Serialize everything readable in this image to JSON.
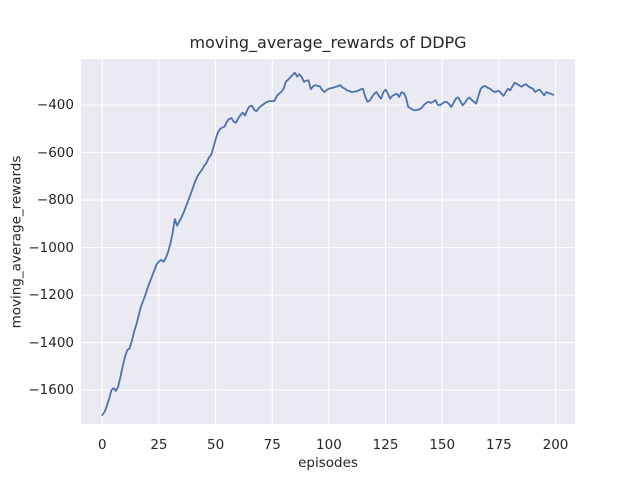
{
  "figure": {
    "title": "moving_average_rewards of DDPG",
    "xlabel": "episodes",
    "ylabel": "moving_average_rewards"
  },
  "chart_data": {
    "type": "line",
    "title": "moving_average_rewards of DDPG",
    "xlabel": "episodes",
    "ylabel": "moving_average_rewards",
    "legend": "none",
    "grid": true,
    "xlim": [
      -9.4,
      208.6
    ],
    "ylim": [
      -1743,
      -206
    ],
    "xticks": {
      "values": [
        0,
        25,
        50,
        75,
        100,
        125,
        150,
        175,
        200
      ],
      "labels": [
        "0",
        "25",
        "50",
        "75",
        "100",
        "125",
        "150",
        "175",
        "200"
      ]
    },
    "yticks": {
      "values": [
        -400,
        -600,
        -800,
        -1000,
        -1200,
        -1400,
        -1600
      ],
      "labels": [
        "−400",
        "−600",
        "−800",
        "−1000",
        "−1200",
        "−1400",
        "−1600"
      ]
    },
    "style": {
      "fig_bg": "#ffffff",
      "plot_bg": "#eaeaf2",
      "grid_color": "#ffffff",
      "text_color": "#262626",
      "line_color": "#4c72b0",
      "line_width": 1.8
    },
    "series": [
      {
        "name": "moving_average_rewards",
        "color": "#4c72b0",
        "points": [
          [
            0,
            -1705
          ],
          [
            1,
            -1692
          ],
          [
            2,
            -1667
          ],
          [
            3,
            -1638
          ],
          [
            4,
            -1601
          ],
          [
            5,
            -1592
          ],
          [
            6,
            -1604
          ],
          [
            7,
            -1585
          ],
          [
            8,
            -1545
          ],
          [
            9,
            -1500
          ],
          [
            10,
            -1460
          ],
          [
            11,
            -1432
          ],
          [
            12,
            -1425
          ],
          [
            13,
            -1395
          ],
          [
            14,
            -1355
          ],
          [
            15,
            -1325
          ],
          [
            16,
            -1288
          ],
          [
            17,
            -1250
          ],
          [
            18,
            -1225
          ],
          [
            19,
            -1200
          ],
          [
            20,
            -1170
          ],
          [
            21,
            -1145
          ],
          [
            22,
            -1120
          ],
          [
            23,
            -1095
          ],
          [
            24,
            -1070
          ],
          [
            25,
            -1058
          ],
          [
            26,
            -1052
          ],
          [
            27,
            -1060
          ],
          [
            28,
            -1045
          ],
          [
            29,
            -1020
          ],
          [
            30,
            -985
          ],
          [
            31,
            -940
          ],
          [
            32,
            -880
          ],
          [
            33,
            -908
          ],
          [
            34,
            -890
          ],
          [
            35,
            -872
          ],
          [
            36,
            -850
          ],
          [
            37,
            -825
          ],
          [
            38,
            -800
          ],
          [
            39,
            -775
          ],
          [
            40,
            -748
          ],
          [
            41,
            -722
          ],
          [
            42,
            -700
          ],
          [
            43,
            -685
          ],
          [
            44,
            -672
          ],
          [
            45,
            -655
          ],
          [
            46,
            -643
          ],
          [
            47,
            -622
          ],
          [
            48,
            -610
          ],
          [
            49,
            -580
          ],
          [
            50,
            -545
          ],
          [
            51,
            -515
          ],
          [
            52,
            -500
          ],
          [
            53,
            -495
          ],
          [
            54,
            -490
          ],
          [
            55,
            -470
          ],
          [
            56,
            -458
          ],
          [
            57,
            -455
          ],
          [
            58,
            -470
          ],
          [
            59,
            -474
          ],
          [
            60,
            -455
          ],
          [
            61,
            -442
          ],
          [
            62,
            -432
          ],
          [
            63,
            -444
          ],
          [
            64,
            -420
          ],
          [
            65,
            -405
          ],
          [
            66,
            -403
          ],
          [
            67,
            -420
          ],
          [
            68,
            -426
          ],
          [
            69,
            -413
          ],
          [
            70,
            -404
          ],
          [
            71,
            -398
          ],
          [
            72,
            -390
          ],
          [
            73,
            -386
          ],
          [
            74,
            -383
          ],
          [
            75,
            -384
          ],
          [
            76,
            -382
          ],
          [
            77,
            -362
          ],
          [
            78,
            -352
          ],
          [
            79,
            -345
          ],
          [
            80,
            -331
          ],
          [
            81,
            -302
          ],
          [
            82,
            -293
          ],
          [
            83,
            -283
          ],
          [
            84,
            -273
          ],
          [
            85,
            -264
          ],
          [
            86,
            -280
          ],
          [
            87,
            -270
          ],
          [
            88,
            -282
          ],
          [
            89,
            -302
          ],
          [
            90,
            -297
          ],
          [
            91,
            -296
          ],
          [
            92,
            -333
          ],
          [
            93,
            -321
          ],
          [
            94,
            -316
          ],
          [
            95,
            -319
          ],
          [
            96,
            -321
          ],
          [
            97,
            -336
          ],
          [
            98,
            -345
          ],
          [
            99,
            -337
          ],
          [
            100,
            -331
          ],
          [
            101,
            -329
          ],
          [
            102,
            -326
          ],
          [
            103,
            -324
          ],
          [
            104,
            -319
          ],
          [
            105,
            -316
          ],
          [
            106,
            -326
          ],
          [
            107,
            -331
          ],
          [
            108,
            -338
          ],
          [
            109,
            -341
          ],
          [
            110,
            -345
          ],
          [
            111,
            -344
          ],
          [
            112,
            -342
          ],
          [
            113,
            -339
          ],
          [
            114,
            -334
          ],
          [
            115,
            -331
          ],
          [
            116,
            -363
          ],
          [
            117,
            -386
          ],
          [
            118,
            -381
          ],
          [
            119,
            -366
          ],
          [
            120,
            -352
          ],
          [
            121,
            -345
          ],
          [
            122,
            -361
          ],
          [
            123,
            -373
          ],
          [
            124,
            -346
          ],
          [
            125,
            -335
          ],
          [
            126,
            -351
          ],
          [
            127,
            -373
          ],
          [
            128,
            -361
          ],
          [
            129,
            -356
          ],
          [
            130,
            -352
          ],
          [
            131,
            -366
          ],
          [
            132,
            -346
          ],
          [
            133,
            -349
          ],
          [
            134,
            -368
          ],
          [
            135,
            -408
          ],
          [
            136,
            -413
          ],
          [
            137,
            -420
          ],
          [
            138,
            -422
          ],
          [
            139,
            -420
          ],
          [
            140,
            -418
          ],
          [
            141,
            -411
          ],
          [
            142,
            -399
          ],
          [
            143,
            -391
          ],
          [
            144,
            -386
          ],
          [
            145,
            -391
          ],
          [
            146,
            -386
          ],
          [
            147,
            -379
          ],
          [
            148,
            -398
          ],
          [
            149,
            -401
          ],
          [
            150,
            -394
          ],
          [
            151,
            -387
          ],
          [
            152,
            -386
          ],
          [
            153,
            -396
          ],
          [
            154,
            -408
          ],
          [
            155,
            -391
          ],
          [
            156,
            -373
          ],
          [
            157,
            -368
          ],
          [
            158,
            -383
          ],
          [
            159,
            -401
          ],
          [
            160,
            -391
          ],
          [
            161,
            -376
          ],
          [
            162,
            -368
          ],
          [
            163,
            -378
          ],
          [
            164,
            -386
          ],
          [
            165,
            -394
          ],
          [
            166,
            -361
          ],
          [
            167,
            -331
          ],
          [
            168,
            -322
          ],
          [
            169,
            -320
          ],
          [
            170,
            -327
          ],
          [
            171,
            -331
          ],
          [
            172,
            -338
          ],
          [
            173,
            -345
          ],
          [
            174,
            -343
          ],
          [
            175,
            -340
          ],
          [
            176,
            -351
          ],
          [
            177,
            -361
          ],
          [
            178,
            -346
          ],
          [
            179,
            -331
          ],
          [
            180,
            -338
          ],
          [
            181,
            -321
          ],
          [
            182,
            -306
          ],
          [
            183,
            -311
          ],
          [
            184,
            -317
          ],
          [
            185,
            -323
          ],
          [
            186,
            -316
          ],
          [
            187,
            -312
          ],
          [
            188,
            -321
          ],
          [
            189,
            -327
          ],
          [
            190,
            -331
          ],
          [
            191,
            -345
          ],
          [
            192,
            -339
          ],
          [
            193,
            -335
          ],
          [
            194,
            -347
          ],
          [
            195,
            -359
          ],
          [
            196,
            -345
          ],
          [
            197,
            -350
          ],
          [
            198,
            -352
          ],
          [
            199,
            -357
          ]
        ]
      }
    ]
  }
}
